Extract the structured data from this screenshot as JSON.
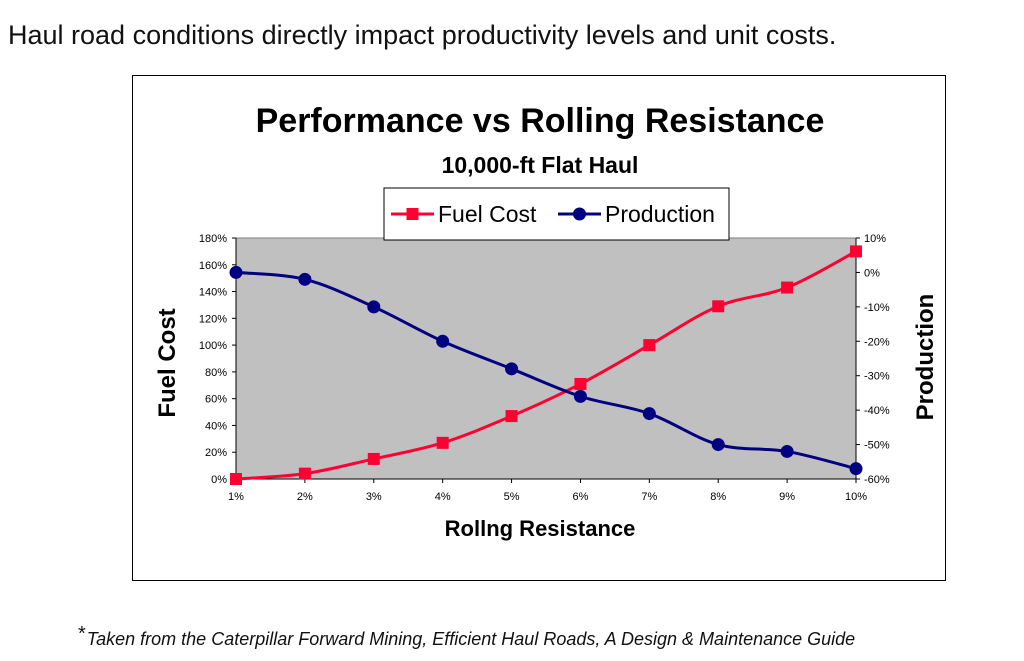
{
  "headline": "Haul road conditions directly impact productivity levels and unit costs.",
  "footnote": {
    "marker": "*",
    "text": "Taken from the Caterpillar Forward Mining, Efficient Haul Roads, A Design & Maintenance Guide"
  },
  "chart_data": {
    "type": "line",
    "title": "Performance vs Rolling Resistance",
    "subtitle": "10,000-ft Flat Haul",
    "xlabel": "Rollng Resistance",
    "ylabel_left": "Fuel Cost",
    "ylabel_right": "Production",
    "categories": [
      "1%",
      "2%",
      "3%",
      "4%",
      "5%",
      "6%",
      "7%",
      "8%",
      "9%",
      "10%"
    ],
    "y_left": {
      "range": [
        0,
        180
      ],
      "ticks": [
        0,
        20,
        40,
        60,
        80,
        100,
        120,
        140,
        160,
        180
      ],
      "tick_labels": [
        "0%",
        "20%",
        "40%",
        "60%",
        "80%",
        "100%",
        "120%",
        "140%",
        "160%",
        "180%"
      ]
    },
    "y_right": {
      "range": [
        -60,
        10
      ],
      "ticks": [
        -60,
        -50,
        -40,
        -30,
        -20,
        -10,
        0,
        10
      ],
      "tick_labels": [
        "-60%",
        "-50%",
        "-40%",
        "-30%",
        "-20%",
        "-10%",
        "0%",
        "10%"
      ]
    },
    "series": [
      {
        "name": "Fuel Cost",
        "axis": "left",
        "color": "#ff0033",
        "marker": "square",
        "values": [
          0,
          4,
          15,
          27,
          47,
          71,
          100,
          129,
          143,
          170
        ]
      },
      {
        "name": "Production",
        "axis": "right",
        "color": "#000080",
        "marker": "circle",
        "values": [
          0,
          -2,
          -10,
          -20,
          -28,
          -36,
          -41,
          -50,
          -52,
          -57
        ]
      }
    ],
    "legend": "top-center",
    "plot_background": "#c0c0c0",
    "grid": false
  }
}
